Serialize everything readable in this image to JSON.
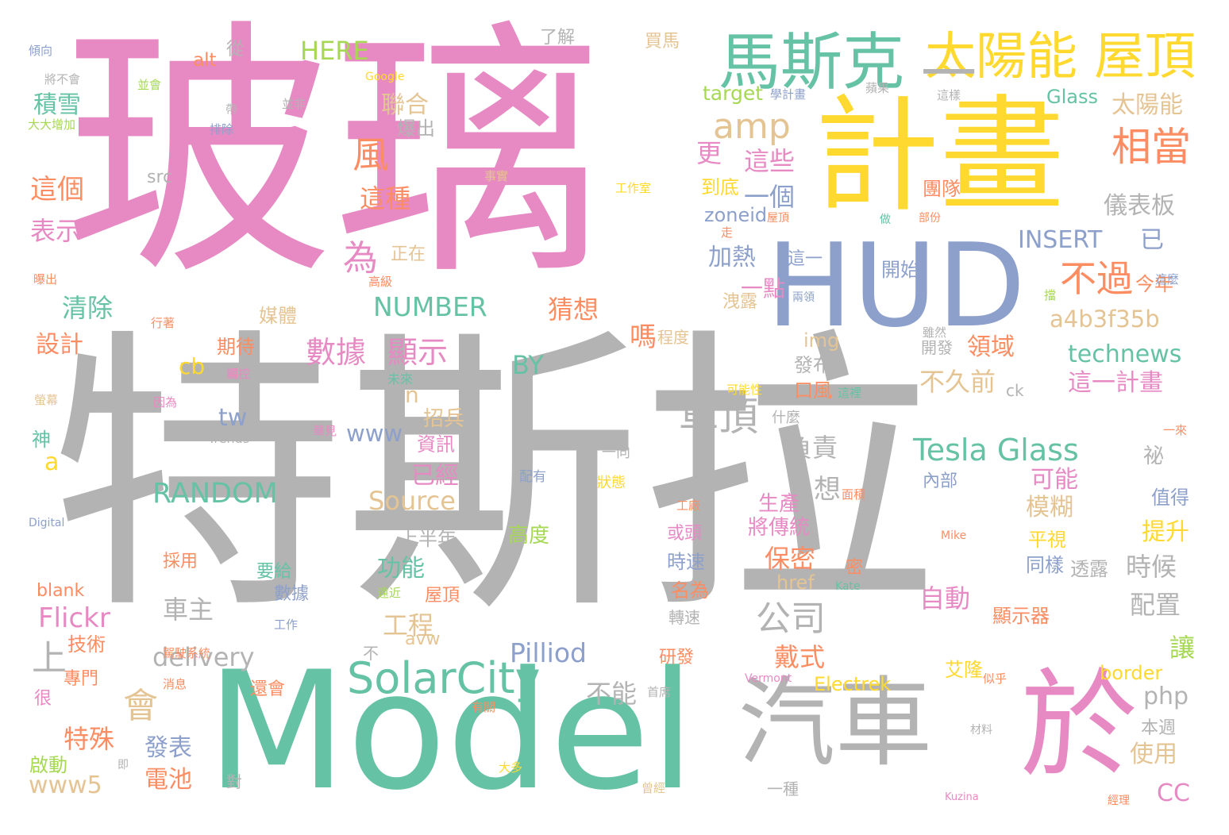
{
  "palette": {
    "gray": "#b3b3b3",
    "pink": "#e78ac3",
    "green": "#66c2a5",
    "blue": "#8da0cb",
    "yellow": "#ffd92f",
    "orange": "#fc8d62",
    "tan": "#e5c494",
    "lime": "#a6d854"
  },
  "words": [
    {
      "id": "tesla",
      "text": "特斯拉",
      "color": "gray"
    },
    {
      "id": "glass",
      "text": "玻璃",
      "color": "pink"
    },
    {
      "id": "model",
      "text": "Model",
      "color": "green"
    },
    {
      "id": "plan",
      "text": "計畫",
      "color": "yellow"
    },
    {
      "id": "hud",
      "text": "HUD",
      "color": "blue"
    },
    {
      "id": "car",
      "text": "汽車",
      "color": "gray"
    },
    {
      "id": "yu",
      "text": "於",
      "color": "pink"
    },
    {
      "id": "musk",
      "text": "馬斯克",
      "color": "green"
    },
    {
      "id": "solar",
      "text": "太陽能",
      "color": "yellow"
    },
    {
      "id": "roof",
      "text": "屋頂",
      "color": "yellow"
    },
    {
      "id": "dash",
      "text": "一",
      "color": "gray"
    },
    {
      "id": "solarcity",
      "text": "SolarCity",
      "color": "green"
    },
    {
      "id": "amp",
      "text": "amp",
      "color": "tan"
    },
    {
      "id": "xiangdang",
      "text": "相當",
      "color": "orange"
    },
    {
      "id": "buguo",
      "text": "不過",
      "color": "orange"
    },
    {
      "id": "chedin",
      "text": "車頂",
      "color": "gray"
    },
    {
      "id": "teslaglass",
      "text": "Tesla Glass",
      "color": "green"
    },
    {
      "id": "gongsi",
      "text": "公司",
      "color": "gray"
    },
    {
      "id": "shuju",
      "text": "數據",
      "color": "pink"
    },
    {
      "id": "xianshi",
      "text": "顯示",
      "color": "pink"
    },
    {
      "id": "feng",
      "text": "風",
      "color": "orange"
    },
    {
      "id": "wei",
      "text": "為",
      "color": "pink"
    },
    {
      "id": "number",
      "text": "NUMBER",
      "color": "green"
    },
    {
      "id": "random",
      "text": "RANDOM",
      "color": "green"
    },
    {
      "id": "a4b",
      "text": "a4b3f35b",
      "color": "tan"
    },
    {
      "id": "insert",
      "text": "INSERT",
      "color": "blue"
    },
    {
      "id": "yi",
      "text": "已",
      "color": "blue"
    },
    {
      "id": "technews",
      "text": "technews",
      "color": "green"
    },
    {
      "id": "zhegejihua",
      "text": "這一計畫",
      "color": "pink"
    },
    {
      "id": "hui",
      "text": "會",
      "color": "tan"
    },
    {
      "id": "shang",
      "text": "上",
      "color": "gray"
    },
    {
      "id": "source",
      "text": "Source",
      "color": "tan"
    },
    {
      "id": "here",
      "text": "HERE",
      "color": "lime"
    },
    {
      "id": "pilliod",
      "text": "Pilliod",
      "color": "blue"
    },
    {
      "id": "flickr",
      "text": "Flickr",
      "color": "pink"
    },
    {
      "id": "delivery",
      "text": "delivery",
      "color": "gray"
    },
    {
      "id": "www5",
      "text": "www5",
      "color": "tan"
    },
    {
      "id": "www",
      "text": "www",
      "color": "blue"
    },
    {
      "id": "by",
      "text": "BY",
      "color": "green"
    },
    {
      "id": "yibiaoban",
      "text": "儀表板",
      "color": "gray"
    },
    {
      "id": "taiyangneng2",
      "text": "太陽能",
      "color": "tan"
    },
    {
      "id": "jixue",
      "text": "積雪",
      "color": "green"
    },
    {
      "id": "lianhe",
      "text": "聯合",
      "color": "tan"
    },
    {
      "id": "baochu",
      "text": "爆出",
      "color": "gray"
    },
    {
      "id": "zhege",
      "text": "這個",
      "color": "orange"
    },
    {
      "id": "biaoshi",
      "text": "表示",
      "color": "pink"
    },
    {
      "id": "qingchu",
      "text": "清除",
      "color": "green"
    },
    {
      "id": "sheji",
      "text": "設計",
      "color": "orange"
    },
    {
      "id": "zhezhong",
      "text": "這種",
      "color": "orange"
    },
    {
      "id": "zhexie",
      "text": "這些",
      "color": "pink"
    },
    {
      "id": "yige",
      "text": "一個",
      "color": "blue"
    },
    {
      "id": "jiare",
      "text": "加熱",
      "color": "blue"
    },
    {
      "id": "yidian",
      "text": "一點",
      "color": "pink"
    },
    {
      "id": "caixiang",
      "text": "猜想",
      "color": "orange"
    },
    {
      "id": "geng",
      "text": "更",
      "color": "pink"
    },
    {
      "id": "daodi",
      "text": "到底",
      "color": "yellow"
    },
    {
      "id": "zoneid",
      "text": "zoneid",
      "color": "blue"
    },
    {
      "id": "ma",
      "text": "嗎",
      "color": "orange"
    },
    {
      "id": "lingyu",
      "text": "領域",
      "color": "orange"
    },
    {
      "id": "bujiuqian",
      "text": "不久前",
      "color": "tan"
    },
    {
      "id": "fuze",
      "text": "負責",
      "color": "gray"
    },
    {
      "id": "keneng",
      "text": "可能",
      "color": "pink"
    },
    {
      "id": "mohu",
      "text": "模糊",
      "color": "tan"
    },
    {
      "id": "tisheng",
      "text": "提升",
      "color": "yellow"
    },
    {
      "id": "shihou",
      "text": "時候",
      "color": "gray"
    },
    {
      "id": "peizhi",
      "text": "配置",
      "color": "gray"
    },
    {
      "id": "rang",
      "text": "讓",
      "color": "lime"
    },
    {
      "id": "zidong",
      "text": "自動",
      "color": "pink"
    },
    {
      "id": "baomi",
      "text": "保密",
      "color": "orange"
    },
    {
      "id": "shengchan",
      "text": "生產",
      "color": "pink"
    },
    {
      "id": "jiangchuantong",
      "text": "將傳統",
      "color": "pink"
    },
    {
      "id": "xiang",
      "text": "想",
      "color": "gray"
    },
    {
      "id": "gongcheng",
      "text": "工程",
      "color": "tan"
    },
    {
      "id": "gongneng",
      "text": "功能",
      "color": "green"
    },
    {
      "id": "chezhu",
      "text": "車主",
      "color": "gray"
    },
    {
      "id": "teshu",
      "text": "特殊",
      "color": "orange"
    },
    {
      "id": "fabiao",
      "text": "發表",
      "color": "blue"
    },
    {
      "id": "dianchi",
      "text": "電池",
      "color": "orange"
    },
    {
      "id": "daishi",
      "text": "戴式",
      "color": "orange"
    },
    {
      "id": "buneng",
      "text": "不能",
      "color": "gray"
    },
    {
      "id": "php",
      "text": "php",
      "color": "gray"
    },
    {
      "id": "shiyong",
      "text": "使用",
      "color": "tan"
    },
    {
      "id": "cc",
      "text": "CC",
      "color": "pink"
    },
    {
      "id": "yijing",
      "text": "已經",
      "color": "pink"
    },
    {
      "id": "zixun",
      "text": "資訊",
      "color": "pink"
    },
    {
      "id": "zhaobing",
      "text": "招兵",
      "color": "tan"
    },
    {
      "id": "gaodu",
      "text": "高度",
      "color": "lime"
    },
    {
      "id": "shangbannian",
      "text": "上半年",
      "color": "gray"
    },
    {
      "id": "cb",
      "text": "cb",
      "color": "yellow"
    },
    {
      "id": "tw",
      "text": "tw",
      "color": "blue"
    },
    {
      "id": "n",
      "text": "n",
      "color": "tan"
    },
    {
      "id": "a",
      "text": "a",
      "color": "yellow"
    },
    {
      "id": "qidai",
      "text": "期待",
      "color": "orange"
    },
    {
      "id": "meiti",
      "text": "媒體",
      "color": "tan"
    },
    {
      "id": "zhengzai",
      "text": "正在",
      "color": "tan"
    },
    {
      "id": "tuandui",
      "text": "團隊",
      "color": "orange"
    },
    {
      "id": "kaishi",
      "text": "開始",
      "color": "blue"
    },
    {
      "id": "jinnian",
      "text": "今年",
      "color": "orange"
    },
    {
      "id": "zheyi",
      "text": "這一",
      "color": "blue"
    },
    {
      "id": "toulu",
      "text": "透露",
      "color": "gray"
    },
    {
      "id": "tongyang",
      "text": "同樣",
      "color": "blue"
    },
    {
      "id": "pingshi",
      "text": "平視",
      "color": "yellow"
    },
    {
      "id": "xianshiqi",
      "text": "顯示器",
      "color": "orange"
    },
    {
      "id": "zhiyou",
      "text": "值得",
      "color": "blue"
    },
    {
      "id": "mi",
      "text": "祕",
      "color": "gray"
    },
    {
      "id": "neibu",
      "text": "內部",
      "color": "blue"
    },
    {
      "id": "koufeng",
      "text": "口風",
      "color": "orange"
    },
    {
      "id": "fabu",
      "text": "發布",
      "color": "gray"
    },
    {
      "id": "img",
      "text": "img",
      "color": "tan"
    },
    {
      "id": "kaifa",
      "text": "開發",
      "color": "gray"
    },
    {
      "id": "ailong",
      "text": "艾隆",
      "color": "yellow"
    },
    {
      "id": "border",
      "text": "border",
      "color": "yellow"
    },
    {
      "id": "electrek",
      "text": "Electrek",
      "color": "yellow"
    },
    {
      "id": "benzhou",
      "text": "本週",
      "color": "gray"
    },
    {
      "id": "target",
      "text": "target",
      "color": "lime"
    },
    {
      "id": "glass2",
      "text": "Glass",
      "color": "green"
    },
    {
      "id": "congcong",
      "text": "從",
      "color": "gray"
    },
    {
      "id": "alt",
      "text": "alt",
      "color": "orange"
    },
    {
      "id": "src",
      "text": "src",
      "color": "gray"
    },
    {
      "id": "blank",
      "text": "blank",
      "color": "orange"
    },
    {
      "id": "jishu",
      "text": "技術",
      "color": "orange"
    },
    {
      "id": "caiyong",
      "text": "採用",
      "color": "orange"
    },
    {
      "id": "zhuanmen",
      "text": "專門",
      "color": "orange"
    },
    {
      "id": "qidong",
      "text": "啟動",
      "color": "lime"
    },
    {
      "id": "hen",
      "text": "很",
      "color": "pink"
    },
    {
      "id": "shen",
      "text": "神",
      "color": "green"
    },
    {
      "id": "maima",
      "text": "買馬",
      "color": "tan"
    },
    {
      "id": "liaojie",
      "text": "了解",
      "color": "gray"
    },
    {
      "id": "shisu",
      "text": "時速",
      "color": "blue"
    },
    {
      "id": "mingwei",
      "text": "名為",
      "color": "orange"
    },
    {
      "id": "zhuansu",
      "text": "轉速",
      "color": "gray"
    },
    {
      "id": "yanfa",
      "text": "研發",
      "color": "orange"
    },
    {
      "id": "huotou",
      "text": "或頭",
      "color": "pink"
    },
    {
      "id": "mi2",
      "text": "密",
      "color": "orange"
    },
    {
      "id": "href",
      "text": "href",
      "color": "tan"
    },
    {
      "id": "yaogei",
      "text": "要給",
      "color": "green"
    },
    {
      "id": "shuju2",
      "text": "數據",
      "color": "blue"
    },
    {
      "id": "huanhui",
      "text": "還會",
      "color": "orange"
    },
    {
      "id": "wudian",
      "text": "屋頂",
      "color": "orange"
    },
    {
      "id": "dui",
      "text": "對",
      "color": "gray"
    },
    {
      "id": "bu",
      "text": "不",
      "color": "gray"
    },
    {
      "id": "avw",
      "text": "avw",
      "color": "tan"
    },
    {
      "id": "yizhong",
      "text": "一種",
      "color": "gray"
    },
    {
      "id": "chengdu",
      "text": "程度",
      "color": "tan"
    },
    {
      "id": "qianlu",
      "text": "洩露",
      "color": "tan"
    },
    {
      "id": "ck",
      "text": "ck",
      "color": "gray"
    },
    {
      "id": "shenme",
      "text": "什麼",
      "color": "gray"
    },
    {
      "id": "yixiang",
      "text": "一向",
      "color": "gray"
    },
    {
      "id": "zhuangtai",
      "text": "狀態",
      "color": "yellow"
    },
    {
      "id": "peiyou",
      "text": "配有",
      "color": "blue"
    },
    {
      "id": "yilai",
      "text": "一來",
      "color": "orange"
    },
    {
      "id": "kaineng",
      "text": "可能性",
      "color": "yellow"
    },
    {
      "id": "zheguo",
      "text": "這裡",
      "color": "green"
    },
    {
      "id": "weilai",
      "text": "未來",
      "color": "green"
    },
    {
      "id": "chukong",
      "text": "觸控",
      "color": "pink"
    },
    {
      "id": "yinwei",
      "text": "因為",
      "color": "pink"
    },
    {
      "id": "trends",
      "text": "Trends",
      "color": "gray"
    },
    {
      "id": "huajian",
      "text": "華見",
      "color": "pink"
    },
    {
      "id": "yingmu",
      "text": "螢幕",
      "color": "tan"
    },
    {
      "id": "digital",
      "text": "Digital",
      "color": "blue"
    },
    {
      "id": "gongchang",
      "text": "工廠",
      "color": "orange"
    },
    {
      "id": "mianji",
      "text": "面積",
      "color": "orange"
    },
    {
      "id": "mike",
      "text": "Mike",
      "color": "orange"
    },
    {
      "id": "kate",
      "text": "Kate",
      "color": "green"
    },
    {
      "id": "yuanjin",
      "text": "遠近",
      "color": "lime"
    },
    {
      "id": "gongzuo",
      "text": "工作",
      "color": "blue"
    },
    {
      "id": "jiashi",
      "text": "駕駛系統",
      "color": "orange"
    },
    {
      "id": "vermont",
      "text": "Vermont",
      "color": "pink"
    },
    {
      "id": "shouxi",
      "text": "首席",
      "color": "gray"
    },
    {
      "id": "sihu",
      "text": "似乎",
      "color": "orange"
    },
    {
      "id": "cailiao",
      "text": "材料",
      "color": "gray"
    },
    {
      "id": "kuzina",
      "text": "Kuzina",
      "color": "pink"
    },
    {
      "id": "jingli",
      "text": "經理",
      "color": "orange"
    },
    {
      "id": "dada",
      "text": "大多",
      "color": "yellow"
    },
    {
      "id": "cengjing",
      "text": "曾經",
      "color": "tan"
    },
    {
      "id": "youguan",
      "text": "有關",
      "color": "orange"
    },
    {
      "id": "xiaoxi",
      "text": "消息",
      "color": "orange"
    },
    {
      "id": "ji",
      "text": "即",
      "color": "gray"
    },
    {
      "id": "qingxiang",
      "text": "傾向",
      "color": "blue"
    },
    {
      "id": "jiangbuhui",
      "text": "將不會",
      "color": "gray"
    },
    {
      "id": "google",
      "text": "Google",
      "color": "yellow"
    },
    {
      "id": "binghui",
      "text": "並會",
      "color": "lime"
    },
    {
      "id": "dada2",
      "text": "大大增加",
      "color": "lime"
    },
    {
      "id": "dai",
      "text": "帶",
      "color": "gray"
    },
    {
      "id": "bingfei",
      "text": "並非",
      "color": "gray"
    },
    {
      "id": "paichu",
      "text": "排除",
      "color": "blue"
    },
    {
      "id": "jihua2",
      "text": "學計畫",
      "color": "blue"
    },
    {
      "id": "pingguo",
      "text": "蘋果",
      "color": "gray"
    },
    {
      "id": "zheyang",
      "text": "這樣",
      "color": "gray"
    },
    {
      "id": "shishi",
      "text": "事實",
      "color": "tan"
    },
    {
      "id": "gongzuoshi",
      "text": "工作室",
      "color": "yellow"
    },
    {
      "id": "wuding2",
      "text": "屋頂",
      "color": "orange"
    },
    {
      "id": "zou",
      "text": "走",
      "color": "orange"
    },
    {
      "id": "zuo",
      "text": "做",
      "color": "green"
    },
    {
      "id": "bufen",
      "text": "部份",
      "color": "orange"
    },
    {
      "id": "liangling",
      "text": "兩領",
      "color": "blue"
    },
    {
      "id": "dang",
      "text": "擋",
      "color": "lime"
    },
    {
      "id": "zheme",
      "text": "這麼",
      "color": "blue"
    },
    {
      "id": "gaoji",
      "text": "高級",
      "color": "orange"
    },
    {
      "id": "baochu2",
      "text": "曝出",
      "color": "orange"
    },
    {
      "id": "xingzhe",
      "text": "行著",
      "color": "orange"
    },
    {
      "id": "suiran",
      "text": "雖然",
      "color": "gray"
    }
  ]
}
